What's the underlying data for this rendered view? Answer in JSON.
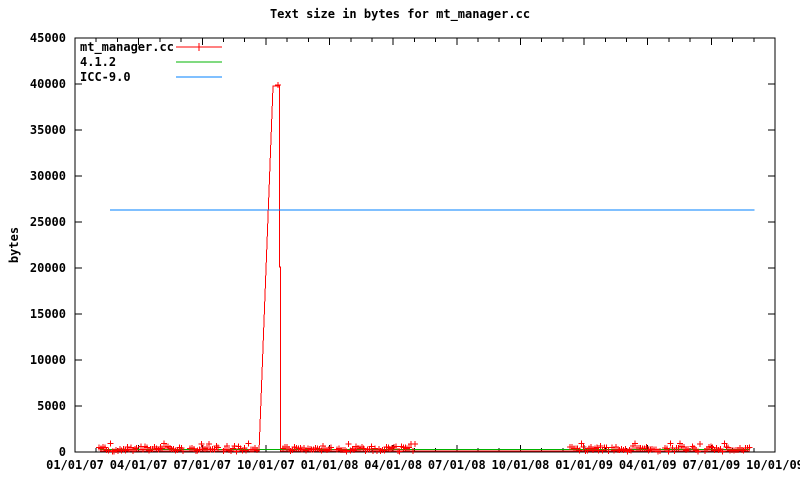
{
  "chart_data": {
    "type": "line",
    "title": "Text size in bytes for mt_manager.cc",
    "xlabel": "",
    "ylabel": "bytes",
    "ylim": [
      0,
      45000
    ],
    "ytick_values": [
      0,
      5000,
      10000,
      15000,
      20000,
      25000,
      30000,
      35000,
      40000,
      45000
    ],
    "xtick_labels": [
      "01/01/07",
      "04/01/07",
      "07/01/07",
      "10/01/07",
      "01/01/08",
      "04/01/08",
      "07/01/08",
      "10/01/08",
      "01/01/09",
      "04/01/09",
      "07/01/09",
      "10/01/09"
    ],
    "x_minor_per_interval": 2,
    "grid": false,
    "legend_position": "top-left",
    "series": [
      {
        "name": "mt_manager.cc",
        "color": "#ff0000",
        "marker": "plus",
        "points": [
          [
            0.39,
            120
          ],
          [
            2.892,
            120
          ],
          [
            3.112,
            39800
          ],
          [
            3.214,
            39800
          ],
          [
            3.214,
            20100
          ],
          [
            3.23,
            20100
          ],
          [
            3.23,
            120
          ],
          [
            10.6,
            120
          ]
        ],
        "peak_marker": [
          3.19,
          39900
        ],
        "marker_clusters": [
          [
            0.38,
            0.97
          ],
          [
            1.04,
            1.7
          ],
          [
            1.81,
            2.25
          ],
          [
            2.33,
            2.69
          ],
          [
            2.73,
            2.86
          ],
          [
            3.27,
            4.02
          ],
          [
            4.12,
            5.34
          ],
          [
            7.78,
            8.38
          ],
          [
            8.44,
            9.19
          ],
          [
            9.27,
            9.63
          ],
          [
            9.7,
            9.82
          ],
          [
            9.9,
            10.6
          ]
        ],
        "cluster_value_range": [
          60,
          910
        ]
      },
      {
        "name": "4.1.2",
        "color": "#00b400",
        "marker": "none",
        "points": [
          [
            0.39,
            270
          ],
          [
            10.6,
            270
          ]
        ]
      },
      {
        "name": "ICC-9.0",
        "color": "#0080ff",
        "marker": "none",
        "points": [
          [
            0.55,
            26300
          ],
          [
            10.68,
            26300
          ]
        ]
      }
    ]
  }
}
